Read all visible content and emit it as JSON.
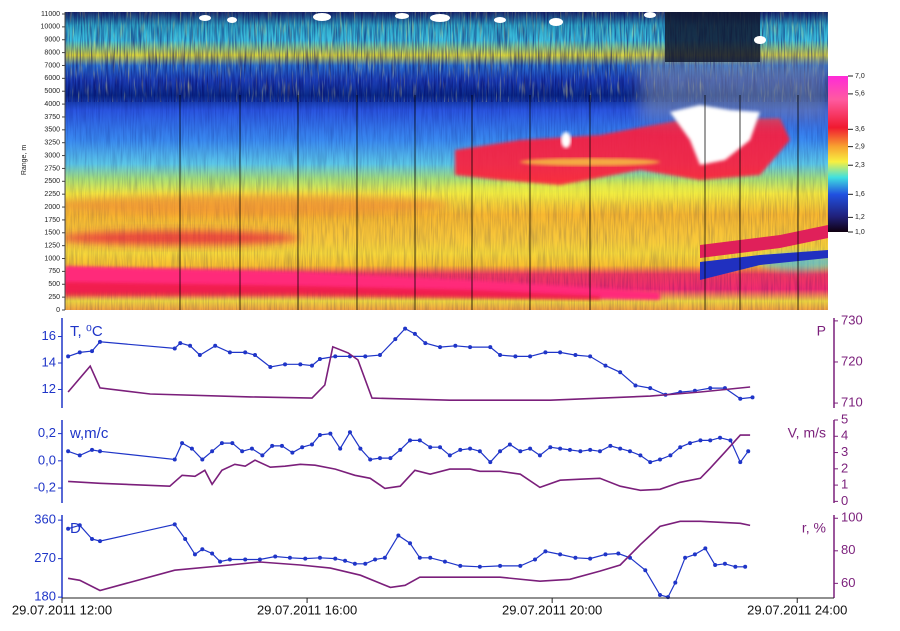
{
  "chart_data": [
    {
      "type": "heatmap",
      "ylabel": "Range, m",
      "yticks": [
        0,
        250,
        500,
        750,
        1000,
        1250,
        1500,
        1750,
        2000,
        2250,
        2500,
        2750,
        3000,
        3250,
        3500,
        3750,
        4000,
        5000,
        6000,
        7000,
        8000,
        9000,
        10000,
        11000
      ],
      "colorbar": {
        "scale": "log",
        "lim": [
          1,
          7
        ],
        "ticks": [
          {
            "value": 7,
            "label": "7,0"
          },
          {
            "value": 5.6,
            "label": "5,6"
          },
          {
            "value": 3.6,
            "label": "3,6"
          },
          {
            "value": 2.9,
            "label": "2,9"
          },
          {
            "value": 2.3,
            "label": "2,3"
          },
          {
            "value": 1.6,
            "label": "1,6"
          },
          {
            "value": 1.2,
            "label": "1,2"
          },
          {
            "value": 1,
            "label": "1,0"
          }
        ]
      }
    },
    {
      "type": "line",
      "ylabel": "T, ⁰C",
      "y2label": "P",
      "xlim": [
        12,
        24.6
      ],
      "ylim": [
        10.6,
        17.4
      ],
      "yticks": [
        12,
        14,
        16
      ],
      "y2lim": [
        708.8,
        730.7
      ],
      "y2ticks": [
        710,
        720,
        730
      ],
      "series": [
        {
          "color": "#1f35c8",
          "markers": true,
          "x": [
            12.1,
            12.29,
            12.49,
            12.62,
            13.84,
            13.93,
            14.09,
            14.25,
            14.5,
            14.74,
            14.99,
            15.15,
            15.4,
            15.64,
            15.89,
            16.08,
            16.21,
            16.46,
            16.7,
            16.95,
            17.19,
            17.44,
            17.6,
            17.76,
            17.93,
            18.17,
            18.42,
            18.66,
            18.99,
            19.15,
            19.4,
            19.64,
            19.89,
            20.13,
            20.38,
            20.62,
            20.87,
            21.11,
            21.36,
            21.6,
            21.85,
            22.09,
            22.33,
            22.58,
            22.82,
            23.07,
            23.27
          ],
          "values": [
            14.5,
            14.8,
            14.9,
            15.6,
            15.1,
            15.5,
            15.3,
            14.6,
            15.3,
            14.8,
            14.8,
            14.6,
            13.7,
            13.9,
            13.9,
            13.8,
            14.3,
            14.5,
            14.5,
            14.5,
            14.6,
            15.8,
            16.6,
            16.2,
            15.5,
            15.2,
            15.3,
            15.2,
            15.2,
            14.6,
            14.5,
            14.5,
            14.8,
            14.8,
            14.6,
            14.5,
            13.8,
            13.3,
            12.3,
            12.1,
            11.6,
            11.8,
            11.9,
            12.1,
            12.1,
            11.3,
            11.4
          ]
        },
        {
          "color": "#7b1f7b",
          "markers": false,
          "axis": "y2",
          "x": [
            12.1,
            12.46,
            12.62,
            13.44,
            15.07,
            16.08,
            16.29,
            16.42,
            16.67,
            16.83,
            17.06,
            18.33,
            19.97,
            21.6,
            22.42,
            23.23
          ],
          "values": [
            712.7,
            719.0,
            713.7,
            712.2,
            711.5,
            711.2,
            714.4,
            723.7,
            722.2,
            720.5,
            711.2,
            710.7,
            710.7,
            711.7,
            712.7,
            713.9
          ]
        }
      ]
    },
    {
      "type": "line",
      "ylabel": "w,m/c",
      "y2label": "V, m/s",
      "xlim": [
        12,
        24.6
      ],
      "ylim": [
        -0.31,
        0.3
      ],
      "yticks": [
        {
          "value": -0.2,
          "label": "-0,2"
        },
        {
          "value": 0,
          "label": "0,0"
        },
        {
          "value": 0.2,
          "label": "0,2"
        }
      ],
      "y2lim": [
        -0.1,
        5
      ],
      "y2ticks": [
        0,
        1,
        2,
        3,
        4,
        5
      ],
      "series": [
        {
          "color": "#1f35c8",
          "markers": true,
          "x": [
            12.1,
            12.29,
            12.49,
            12.62,
            13.84,
            13.96,
            14.12,
            14.29,
            14.45,
            14.61,
            14.78,
            14.94,
            15.1,
            15.27,
            15.43,
            15.59,
            15.76,
            15.92,
            16.08,
            16.21,
            16.38,
            16.54,
            16.7,
            16.87,
            17.03,
            17.19,
            17.36,
            17.52,
            17.68,
            17.84,
            18.01,
            18.17,
            18.33,
            18.5,
            18.66,
            18.82,
            18.99,
            19.15,
            19.31,
            19.48,
            19.64,
            19.8,
            19.97,
            20.13,
            20.29,
            20.46,
            20.62,
            20.78,
            20.95,
            21.11,
            21.27,
            21.44,
            21.6,
            21.76,
            21.93,
            22.09,
            22.25,
            22.42,
            22.58,
            22.74,
            22.91,
            23.07,
            23.2
          ],
          "values": [
            0.07,
            0.04,
            0.08,
            0.07,
            0.01,
            0.13,
            0.09,
            0.01,
            0.07,
            0.13,
            0.13,
            0.07,
            0.09,
            0.04,
            0.11,
            0.11,
            0.06,
            0.1,
            0.12,
            0.19,
            0.2,
            0.09,
            0.21,
            0.09,
            0.01,
            0.02,
            0.02,
            0.08,
            0.15,
            0.15,
            0.1,
            0.1,
            0.04,
            0.08,
            0.09,
            0.07,
            -0.01,
            0.07,
            0.12,
            0.07,
            0.09,
            0.04,
            0.1,
            0.09,
            0.08,
            0.07,
            0.08,
            0.07,
            0.11,
            0.09,
            0.07,
            0.04,
            -0.01,
            0.01,
            0.04,
            0.1,
            0.13,
            0.15,
            0.15,
            0.17,
            0.15,
            -0.01,
            0.07
          ]
        },
        {
          "color": "#7b1f7b",
          "markers": false,
          "axis": "y2",
          "x": [
            12.1,
            12.62,
            13.76,
            13.96,
            14.17,
            14.33,
            14.45,
            14.61,
            14.82,
            14.99,
            15.15,
            15.4,
            15.64,
            15.89,
            16.13,
            16.46,
            16.78,
            17.03,
            17.27,
            17.52,
            17.76,
            18.01,
            18.33,
            18.66,
            18.82,
            19.15,
            19.48,
            19.8,
            20.13,
            20.46,
            20.78,
            21.11,
            21.44,
            21.76,
            22.09,
            22.42,
            22.58,
            22.82,
            23.07,
            23.23
          ],
          "values": [
            1.23,
            1.11,
            0.93,
            1.6,
            1.54,
            1.91,
            1.05,
            1.91,
            2.28,
            2.16,
            2.53,
            2.1,
            2.16,
            2.28,
            2.22,
            1.98,
            1.6,
            1.42,
            0.8,
            0.93,
            1.91,
            1.67,
            1.98,
            1.98,
            1.85,
            1.85,
            1.67,
            0.86,
            1.3,
            1.36,
            1.42,
            0.93,
            0.68,
            0.74,
            1.17,
            1.42,
            2.04,
            3.02,
            4.07,
            4.07
          ]
        }
      ]
    },
    {
      "type": "line",
      "ylabel": "D",
      "y2label": "r, %",
      "xlim": [
        12,
        24.6
      ],
      "ylim": [
        178,
        372
      ],
      "yticks": [
        180,
        270,
        360
      ],
      "y2lim": [
        51,
        102
      ],
      "y2ticks": [
        60,
        80,
        100
      ],
      "xticks": [
        {
          "value": 12,
          "label": "29.07.2011 12:00"
        },
        {
          "value": 16,
          "label": "29.07.2011 16:00"
        },
        {
          "value": 20,
          "label": "29.07.2011 20:00"
        },
        {
          "value": 24,
          "label": "29.07.2011 24:00"
        }
      ],
      "series": [
        {
          "color": "#1f35c8",
          "markers": true,
          "x": [
            12.1,
            12.29,
            12.49,
            12.62,
            13.84,
            14.01,
            14.17,
            14.29,
            14.45,
            14.58,
            14.74,
            14.99,
            15.23,
            15.48,
            15.72,
            15.97,
            16.21,
            16.46,
            16.62,
            16.78,
            16.95,
            17.11,
            17.27,
            17.49,
            17.68,
            17.84,
            18.01,
            18.25,
            18.5,
            18.82,
            19.15,
            19.48,
            19.72,
            19.89,
            20.13,
            20.38,
            20.62,
            20.87,
            21.08,
            21.27,
            21.52,
            21.76,
            21.89,
            22.01,
            22.17,
            22.33,
            22.5,
            22.66,
            22.82,
            22.99,
            23.15
          ],
          "values": [
            340,
            348,
            316,
            311,
            350,
            316,
            280,
            292,
            282,
            263,
            268,
            268,
            268,
            275,
            272,
            270,
            272,
            270,
            265,
            258,
            258,
            268,
            272,
            324,
            306,
            272,
            272,
            263,
            253,
            251,
            253,
            253,
            268,
            287,
            280,
            272,
            270,
            280,
            282,
            272,
            243,
            185,
            180,
            214,
            272,
            280,
            294,
            255,
            258,
            251,
            251
          ]
        },
        {
          "color": "#7b1f7b",
          "markers": false,
          "axis": "y2",
          "x": [
            12.1,
            12.29,
            12.62,
            13.84,
            14.74,
            15.23,
            15.89,
            16.38,
            16.87,
            17.36,
            17.6,
            17.84,
            18.5,
            19.15,
            19.8,
            20.29,
            20.78,
            21.11,
            21.44,
            21.76,
            22.09,
            22.42,
            23.07,
            23.23
          ],
          "values": [
            63.1,
            61.9,
            55.6,
            68.1,
            71.3,
            73.1,
            71.3,
            69.4,
            65,
            57.5,
            58.8,
            63.8,
            63.8,
            63.8,
            61.3,
            62.5,
            67.5,
            71.3,
            83.8,
            95,
            98.1,
            98.1,
            96.9,
            95.6
          ]
        }
      ]
    }
  ]
}
